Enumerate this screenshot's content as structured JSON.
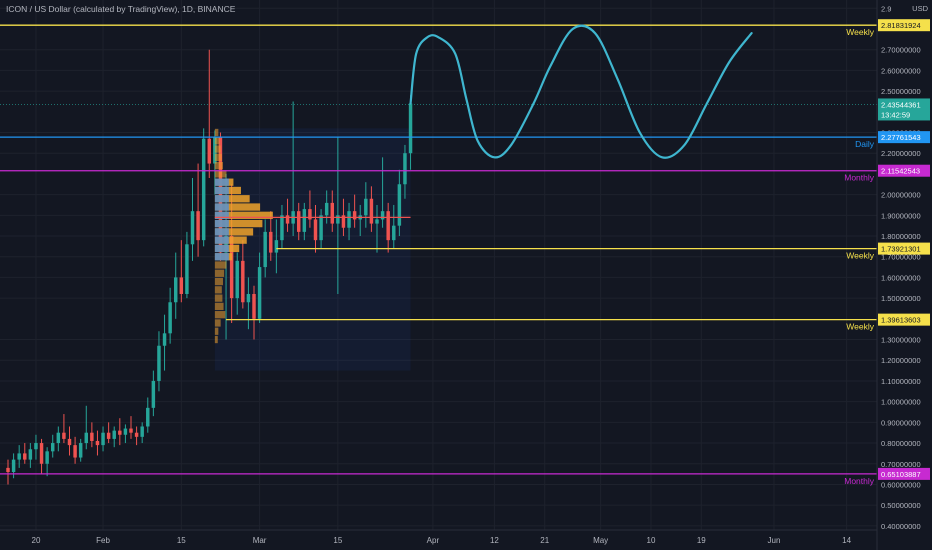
{
  "header": {
    "title": "ICON / US Dollar (calculated by TradingView), 1D, BINANCE",
    "currency": "USD"
  },
  "colors": {
    "background": "#131722",
    "grid": "#1e222d",
    "up": "#26a69a",
    "down": "#ef5350",
    "weekly": "#f5e04b",
    "daily": "#2196f3",
    "monthly": "#c72ad1",
    "drawing": "#3fb6cf",
    "profile": "#f0a32b",
    "profile_value_area": "#4a8fe0",
    "price_tag": "#26a69a"
  },
  "chart_data": {
    "type": "candlestick",
    "title": "ICON / US Dollar (calculated by TradingView), 1D, BINANCE",
    "y_unit": "USD",
    "ylim": [
      0.38,
      2.94
    ],
    "xlim": [
      "2021-01-15",
      "2021-06-18"
    ],
    "x_ticks": [
      {
        "date": "2021-01-20",
        "label": "20"
      },
      {
        "date": "2021-02-01",
        "label": "Feb"
      },
      {
        "date": "2021-02-15",
        "label": "15"
      },
      {
        "date": "2021-03-01",
        "label": "Mar"
      },
      {
        "date": "2021-03-15",
        "label": "15"
      },
      {
        "date": "2021-04-01",
        "label": "Apr"
      },
      {
        "date": "2021-04-12",
        "label": "12"
      },
      {
        "date": "2021-04-21",
        "label": "21"
      },
      {
        "date": "2021-05-01",
        "label": "May"
      },
      {
        "date": "2021-05-10",
        "label": "10"
      },
      {
        "date": "2021-05-19",
        "label": "19"
      },
      {
        "date": "2021-06-01",
        "label": "Jun"
      },
      {
        "date": "2021-06-14",
        "label": "14"
      }
    ],
    "y_ticks": [
      {
        "value": 2.9,
        "label": "2.9"
      },
      {
        "value": 2.7,
        "label": "2.70000000"
      },
      {
        "value": 2.6,
        "label": "2.60000000"
      },
      {
        "value": 2.5,
        "label": "2.50000000"
      },
      {
        "value": 2.3,
        "label": "2.30000000"
      },
      {
        "value": 2.2,
        "label": "2.20000000"
      },
      {
        "value": 2.0,
        "label": "2.00000000"
      },
      {
        "value": 1.9,
        "label": "1.90000000"
      },
      {
        "value": 1.8,
        "label": "1.80000000"
      },
      {
        "value": 1.7,
        "label": "1.70000000"
      },
      {
        "value": 1.6,
        "label": "1.60000000"
      },
      {
        "value": 1.5,
        "label": "1.50000000"
      },
      {
        "value": 1.3,
        "label": "1.30000000"
      },
      {
        "value": 1.2,
        "label": "1.20000000"
      },
      {
        "value": 1.1,
        "label": "1.10000000"
      },
      {
        "value": 1.0,
        "label": "1.00000000"
      },
      {
        "value": 0.9,
        "label": "0.90000000"
      },
      {
        "value": 0.8,
        "label": "0.80000000"
      },
      {
        "value": 0.7,
        "label": "0.70000000"
      },
      {
        "value": 0.6,
        "label": "0.60000000"
      },
      {
        "value": 0.5,
        "label": "0.50000000"
      },
      {
        "value": 0.4,
        "label": "0.40000000"
      }
    ],
    "levels": [
      {
        "value": 2.81831924,
        "label": "2.81831924",
        "tag": "Weekly",
        "kind": "weekly"
      },
      {
        "value": 2.27761543,
        "label": "2.27761543",
        "tag": "Daily",
        "kind": "daily"
      },
      {
        "value": 2.11542543,
        "label": "2.11542543",
        "tag": "Monthly",
        "kind": "monthly"
      },
      {
        "value": 1.73921301,
        "label": "1.73921301",
        "tag": "Weekly",
        "kind": "weekly",
        "from": "2021-03-04"
      },
      {
        "value": 1.39613603,
        "label": "1.39613603",
        "tag": "Weekly",
        "kind": "weekly",
        "from": "2021-02-23"
      },
      {
        "value": 0.65103887,
        "label": "0.65103887",
        "tag": "Monthly",
        "kind": "monthly"
      }
    ],
    "last_price": {
      "value": 2.43544361,
      "label": "2.43544361",
      "countdown": "13:42:59"
    },
    "candles": [
      {
        "d": "2021-01-15",
        "o": 0.68,
        "h": 0.72,
        "l": 0.6,
        "c": 0.66
      },
      {
        "d": "2021-01-16",
        "o": 0.66,
        "h": 0.75,
        "l": 0.63,
        "c": 0.72
      },
      {
        "d": "2021-01-17",
        "o": 0.72,
        "h": 0.79,
        "l": 0.68,
        "c": 0.75
      },
      {
        "d": "2021-01-18",
        "o": 0.75,
        "h": 0.8,
        "l": 0.7,
        "c": 0.72
      },
      {
        "d": "2021-01-19",
        "o": 0.72,
        "h": 0.8,
        "l": 0.68,
        "c": 0.77
      },
      {
        "d": "2021-01-20",
        "o": 0.77,
        "h": 0.84,
        "l": 0.72,
        "c": 0.8
      },
      {
        "d": "2021-01-21",
        "o": 0.8,
        "h": 0.82,
        "l": 0.65,
        "c": 0.7
      },
      {
        "d": "2021-01-22",
        "o": 0.7,
        "h": 0.78,
        "l": 0.64,
        "c": 0.76
      },
      {
        "d": "2021-01-23",
        "o": 0.76,
        "h": 0.84,
        "l": 0.73,
        "c": 0.8
      },
      {
        "d": "2021-01-24",
        "o": 0.8,
        "h": 0.88,
        "l": 0.76,
        "c": 0.85
      },
      {
        "d": "2021-01-25",
        "o": 0.85,
        "h": 0.94,
        "l": 0.8,
        "c": 0.82
      },
      {
        "d": "2021-01-26",
        "o": 0.82,
        "h": 0.88,
        "l": 0.74,
        "c": 0.79
      },
      {
        "d": "2021-01-27",
        "o": 0.79,
        "h": 0.83,
        "l": 0.7,
        "c": 0.73
      },
      {
        "d": "2021-01-28",
        "o": 0.73,
        "h": 0.82,
        "l": 0.71,
        "c": 0.8
      },
      {
        "d": "2021-01-29",
        "o": 0.8,
        "h": 0.98,
        "l": 0.77,
        "c": 0.85
      },
      {
        "d": "2021-01-30",
        "o": 0.85,
        "h": 0.9,
        "l": 0.78,
        "c": 0.81
      },
      {
        "d": "2021-01-31",
        "o": 0.81,
        "h": 0.86,
        "l": 0.74,
        "c": 0.79
      },
      {
        "d": "2021-02-01",
        "o": 0.79,
        "h": 0.88,
        "l": 0.76,
        "c": 0.85
      },
      {
        "d": "2021-02-02",
        "o": 0.85,
        "h": 0.9,
        "l": 0.8,
        "c": 0.82
      },
      {
        "d": "2021-02-03",
        "o": 0.82,
        "h": 0.88,
        "l": 0.78,
        "c": 0.86
      },
      {
        "d": "2021-02-04",
        "o": 0.86,
        "h": 0.92,
        "l": 0.79,
        "c": 0.84
      },
      {
        "d": "2021-02-05",
        "o": 0.84,
        "h": 0.89,
        "l": 0.8,
        "c": 0.87
      },
      {
        "d": "2021-02-06",
        "o": 0.87,
        "h": 0.93,
        "l": 0.82,
        "c": 0.85
      },
      {
        "d": "2021-02-07",
        "o": 0.85,
        "h": 0.88,
        "l": 0.79,
        "c": 0.83
      },
      {
        "d": "2021-02-08",
        "o": 0.83,
        "h": 0.9,
        "l": 0.8,
        "c": 0.88
      },
      {
        "d": "2021-02-09",
        "o": 0.88,
        "h": 1.02,
        "l": 0.85,
        "c": 0.97
      },
      {
        "d": "2021-02-10",
        "o": 0.97,
        "h": 1.15,
        "l": 0.93,
        "c": 1.1
      },
      {
        "d": "2021-02-11",
        "o": 1.1,
        "h": 1.34,
        "l": 1.05,
        "c": 1.27
      },
      {
        "d": "2021-02-12",
        "o": 1.27,
        "h": 1.42,
        "l": 1.15,
        "c": 1.33
      },
      {
        "d": "2021-02-13",
        "o": 1.33,
        "h": 1.55,
        "l": 1.28,
        "c": 1.48
      },
      {
        "d": "2021-02-14",
        "o": 1.48,
        "h": 1.72,
        "l": 1.4,
        "c": 1.6
      },
      {
        "d": "2021-02-15",
        "o": 1.6,
        "h": 1.78,
        "l": 1.48,
        "c": 1.52
      },
      {
        "d": "2021-02-16",
        "o": 1.52,
        "h": 1.82,
        "l": 1.5,
        "c": 1.76
      },
      {
        "d": "2021-02-17",
        "o": 1.76,
        "h": 2.08,
        "l": 1.68,
        "c": 1.92
      },
      {
        "d": "2021-02-18",
        "o": 1.92,
        "h": 2.15,
        "l": 1.7,
        "c": 1.78
      },
      {
        "d": "2021-02-19",
        "o": 1.78,
        "h": 2.32,
        "l": 1.75,
        "c": 2.27
      },
      {
        "d": "2021-02-20",
        "o": 2.27,
        "h": 2.7,
        "l": 2.08,
        "c": 2.15
      },
      {
        "d": "2021-02-21",
        "o": 2.15,
        "h": 2.31,
        "l": 2.0,
        "c": 2.28
      },
      {
        "d": "2021-02-22",
        "o": 2.28,
        "h": 2.3,
        "l": 1.68,
        "c": 1.72
      },
      {
        "d": "2021-02-23",
        "o": 1.72,
        "h": 2.1,
        "l": 1.3,
        "c": 1.8
      },
      {
        "d": "2021-02-24",
        "o": 1.8,
        "h": 2.05,
        "l": 1.38,
        "c": 1.5
      },
      {
        "d": "2021-02-25",
        "o": 1.5,
        "h": 1.72,
        "l": 1.42,
        "c": 1.68
      },
      {
        "d": "2021-02-26",
        "o": 1.68,
        "h": 1.78,
        "l": 1.45,
        "c": 1.48
      },
      {
        "d": "2021-02-27",
        "o": 1.48,
        "h": 1.6,
        "l": 1.35,
        "c": 1.52
      },
      {
        "d": "2021-02-28",
        "o": 1.52,
        "h": 1.56,
        "l": 1.3,
        "c": 1.4
      },
      {
        "d": "2021-03-01",
        "o": 1.4,
        "h": 1.72,
        "l": 1.38,
        "c": 1.65
      },
      {
        "d": "2021-03-02",
        "o": 1.65,
        "h": 1.88,
        "l": 1.6,
        "c": 1.82
      },
      {
        "d": "2021-03-03",
        "o": 1.82,
        "h": 1.92,
        "l": 1.68,
        "c": 1.72
      },
      {
        "d": "2021-03-04",
        "o": 1.72,
        "h": 1.88,
        "l": 1.62,
        "c": 1.78
      },
      {
        "d": "2021-03-05",
        "o": 1.78,
        "h": 1.95,
        "l": 1.74,
        "c": 1.9
      },
      {
        "d": "2021-03-06",
        "o": 1.9,
        "h": 1.98,
        "l": 1.82,
        "c": 1.86
      },
      {
        "d": "2021-03-07",
        "o": 1.86,
        "h": 2.45,
        "l": 1.8,
        "c": 1.92
      },
      {
        "d": "2021-03-08",
        "o": 1.92,
        "h": 1.96,
        "l": 1.78,
        "c": 1.82
      },
      {
        "d": "2021-03-09",
        "o": 1.82,
        "h": 1.96,
        "l": 1.78,
        "c": 1.93
      },
      {
        "d": "2021-03-10",
        "o": 1.93,
        "h": 2.02,
        "l": 1.84,
        "c": 1.88
      },
      {
        "d": "2021-03-11",
        "o": 1.88,
        "h": 1.95,
        "l": 1.72,
        "c": 1.78
      },
      {
        "d": "2021-03-12",
        "o": 1.78,
        "h": 1.93,
        "l": 1.74,
        "c": 1.9
      },
      {
        "d": "2021-03-13",
        "o": 1.9,
        "h": 2.02,
        "l": 1.86,
        "c": 1.96
      },
      {
        "d": "2021-03-14",
        "o": 1.96,
        "h": 2.02,
        "l": 1.82,
        "c": 1.86
      },
      {
        "d": "2021-03-15",
        "o": 1.86,
        "h": 2.28,
        "l": 1.52,
        "c": 1.9
      },
      {
        "d": "2021-03-16",
        "o": 1.9,
        "h": 1.98,
        "l": 1.8,
        "c": 1.84
      },
      {
        "d": "2021-03-17",
        "o": 1.84,
        "h": 1.96,
        "l": 1.78,
        "c": 1.92
      },
      {
        "d": "2021-03-18",
        "o": 1.92,
        "h": 2.0,
        "l": 1.84,
        "c": 1.88
      },
      {
        "d": "2021-03-19",
        "o": 1.88,
        "h": 1.95,
        "l": 1.8,
        "c": 1.9
      },
      {
        "d": "2021-03-20",
        "o": 1.9,
        "h": 2.06,
        "l": 1.84,
        "c": 1.98
      },
      {
        "d": "2021-03-21",
        "o": 1.98,
        "h": 2.04,
        "l": 1.82,
        "c": 1.86
      },
      {
        "d": "2021-03-22",
        "o": 1.86,
        "h": 1.95,
        "l": 1.72,
        "c": 1.88
      },
      {
        "d": "2021-03-23",
        "o": 1.88,
        "h": 2.18,
        "l": 1.84,
        "c": 1.92
      },
      {
        "d": "2021-03-24",
        "o": 1.92,
        "h": 1.96,
        "l": 1.72,
        "c": 1.78
      },
      {
        "d": "2021-03-25",
        "o": 1.78,
        "h": 1.95,
        "l": 1.74,
        "c": 1.85
      },
      {
        "d": "2021-03-26",
        "o": 1.85,
        "h": 2.12,
        "l": 1.8,
        "c": 2.05
      },
      {
        "d": "2021-03-27",
        "o": 2.05,
        "h": 2.24,
        "l": 1.98,
        "c": 2.2
      },
      {
        "d": "2021-03-28",
        "o": 2.2,
        "h": 2.48,
        "l": 2.12,
        "c": 2.44
      }
    ],
    "volume_profile": {
      "from": "2021-02-21",
      "to": "2021-03-28",
      "low": 1.15,
      "high": 2.32,
      "poc": 1.89,
      "value_area": [
        1.7,
        2.08
      ],
      "bins": [
        {
          "p": 2.3,
          "v": 0.06
        },
        {
          "p": 2.26,
          "v": 0.08
        },
        {
          "p": 2.22,
          "v": 0.1
        },
        {
          "p": 2.18,
          "v": 0.12
        },
        {
          "p": 2.14,
          "v": 0.14
        },
        {
          "p": 2.1,
          "v": 0.2
        },
        {
          "p": 2.06,
          "v": 0.32
        },
        {
          "p": 2.02,
          "v": 0.45
        },
        {
          "p": 1.98,
          "v": 0.6
        },
        {
          "p": 1.94,
          "v": 0.78
        },
        {
          "p": 1.9,
          "v": 1.0
        },
        {
          "p": 1.86,
          "v": 0.82
        },
        {
          "p": 1.82,
          "v": 0.66
        },
        {
          "p": 1.78,
          "v": 0.55
        },
        {
          "p": 1.74,
          "v": 0.42
        },
        {
          "p": 1.7,
          "v": 0.3
        },
        {
          "p": 1.66,
          "v": 0.2
        },
        {
          "p": 1.62,
          "v": 0.16
        },
        {
          "p": 1.58,
          "v": 0.14
        },
        {
          "p": 1.54,
          "v": 0.12
        },
        {
          "p": 1.5,
          "v": 0.13
        },
        {
          "p": 1.46,
          "v": 0.15
        },
        {
          "p": 1.42,
          "v": 0.18
        },
        {
          "p": 1.38,
          "v": 0.1
        },
        {
          "p": 1.34,
          "v": 0.06
        },
        {
          "p": 1.3,
          "v": 0.05
        }
      ]
    },
    "forecast_path": [
      {
        "d": "2021-03-28",
        "v": 2.44
      },
      {
        "d": "2021-03-29",
        "v": 2.68
      },
      {
        "d": "2021-03-31",
        "v": 2.76
      },
      {
        "d": "2021-04-02",
        "v": 2.76
      },
      {
        "d": "2021-04-05",
        "v": 2.68
      },
      {
        "d": "2021-04-07",
        "v": 2.46
      },
      {
        "d": "2021-04-09",
        "v": 2.26
      },
      {
        "d": "2021-04-12",
        "v": 2.18
      },
      {
        "d": "2021-04-15",
        "v": 2.24
      },
      {
        "d": "2021-04-19",
        "v": 2.44
      },
      {
        "d": "2021-04-22",
        "v": 2.62
      },
      {
        "d": "2021-04-26",
        "v": 2.8
      },
      {
        "d": "2021-04-30",
        "v": 2.78
      },
      {
        "d": "2021-05-04",
        "v": 2.56
      },
      {
        "d": "2021-05-08",
        "v": 2.3
      },
      {
        "d": "2021-05-12",
        "v": 2.18
      },
      {
        "d": "2021-05-16",
        "v": 2.24
      },
      {
        "d": "2021-05-20",
        "v": 2.44
      },
      {
        "d": "2021-05-24",
        "v": 2.64
      },
      {
        "d": "2021-05-28",
        "v": 2.78
      }
    ]
  }
}
